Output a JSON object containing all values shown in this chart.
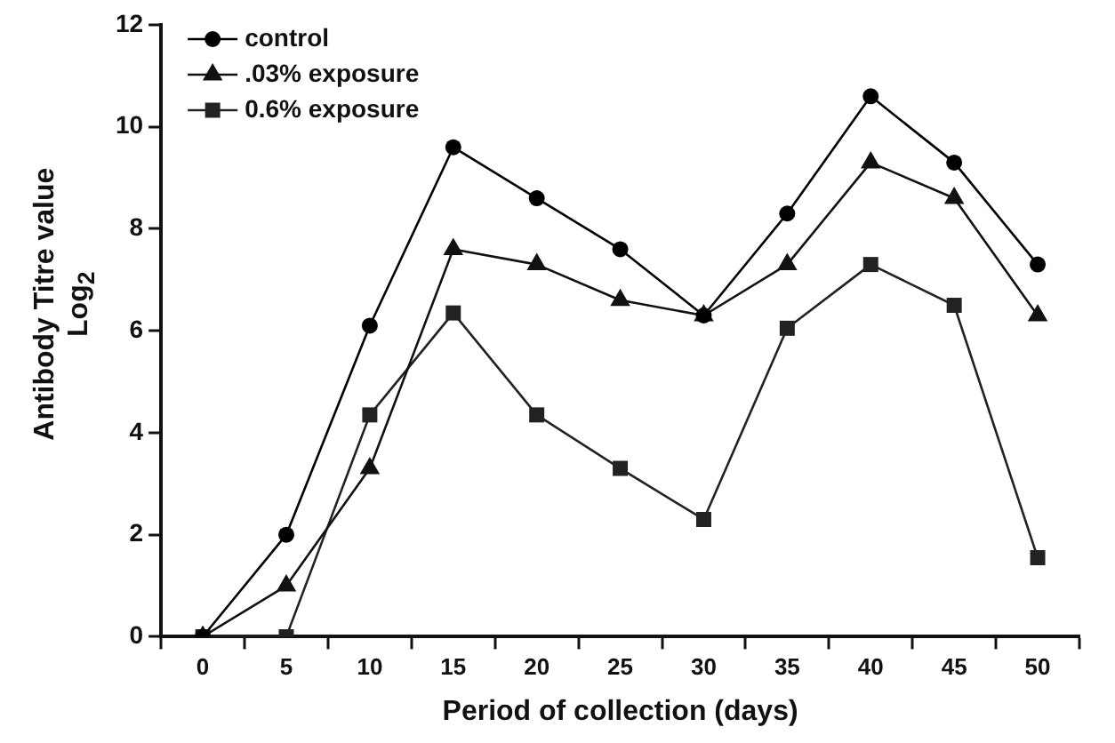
{
  "chart_data": {
    "type": "line",
    "xlabel": "Period of collection (days)",
    "ylabel": "Antibody Titre value Log$_{2}$",
    "categories": [
      "0",
      "5",
      "10",
      "15",
      "20",
      "25",
      "30",
      "35",
      "40",
      "45",
      "50"
    ],
    "ylim": [
      0,
      12
    ],
    "yticks": [
      0,
      2,
      4,
      6,
      8,
      10,
      12
    ],
    "grid": false,
    "legend": "top left",
    "line_style": "solid",
    "series": [
      {
        "name": "control",
        "color": "#000000",
        "marker": "circle",
        "values": [
          0,
          2,
          6.1,
          9.6,
          8.6,
          7.6,
          6.3,
          8.3,
          10.6,
          9.3,
          7.3
        ]
      },
      {
        "name": ".03% exposure",
        "color": "#111111",
        "marker": "triangle",
        "values": [
          0,
          1,
          3.3,
          7.6,
          7.3,
          6.6,
          6.3,
          7.3,
          9.3,
          8.6,
          6.3
        ]
      },
      {
        "name": "0.6% exposure",
        "color": "#222222",
        "marker": "square",
        "values": [
          0,
          0,
          4.35,
          6.35,
          4.35,
          3.3,
          2.3,
          6.05,
          7.3,
          6.5,
          1.55
        ]
      }
    ]
  }
}
